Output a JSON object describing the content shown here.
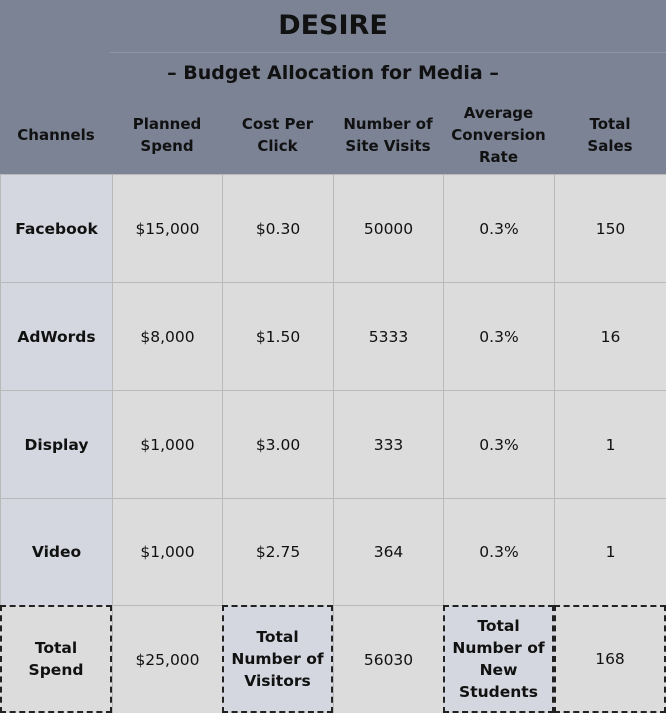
{
  "title": "DESIRE",
  "subtitle": "– Budget Allocation for Media –",
  "columns": [
    "Channels",
    "Planned\nSpend",
    "Cost Per\nClick",
    "Number of\nSite Visits",
    "Average\nConversion\nRate",
    "Total\nSales"
  ],
  "rows": [
    {
      "channel": "Facebook",
      "spend": "$15,000",
      "cpc": "$0.30",
      "visits": "50000",
      "conversion": "0.3%",
      "sales": "150"
    },
    {
      "channel": "AdWords",
      "spend": "$8,000",
      "cpc": "$1.50",
      "visits": "5333",
      "conversion": "0.3%",
      "sales": "16"
    },
    {
      "channel": "Display",
      "spend": "$1,000",
      "cpc": "$3.00",
      "visits": "333",
      "conversion": "0.3%",
      "sales": "1"
    },
    {
      "channel": "Video",
      "spend": "$1,000",
      "cpc": "$2.75",
      "visits": "364",
      "conversion": "0.3%",
      "sales": "1"
    }
  ],
  "totals": {
    "spend_label": "Total\nSpend",
    "spend_value": "$25,000",
    "visitors_label": "Total\nNumber of\nVisitors",
    "visitors_value": "56030",
    "students_label": "Total\nNumber of\nNew\nStudents",
    "students_value": "168"
  },
  "colors": {
    "header": "#7b8395",
    "cell": "#dcdcdc",
    "label_cell": "#d4d7df"
  }
}
